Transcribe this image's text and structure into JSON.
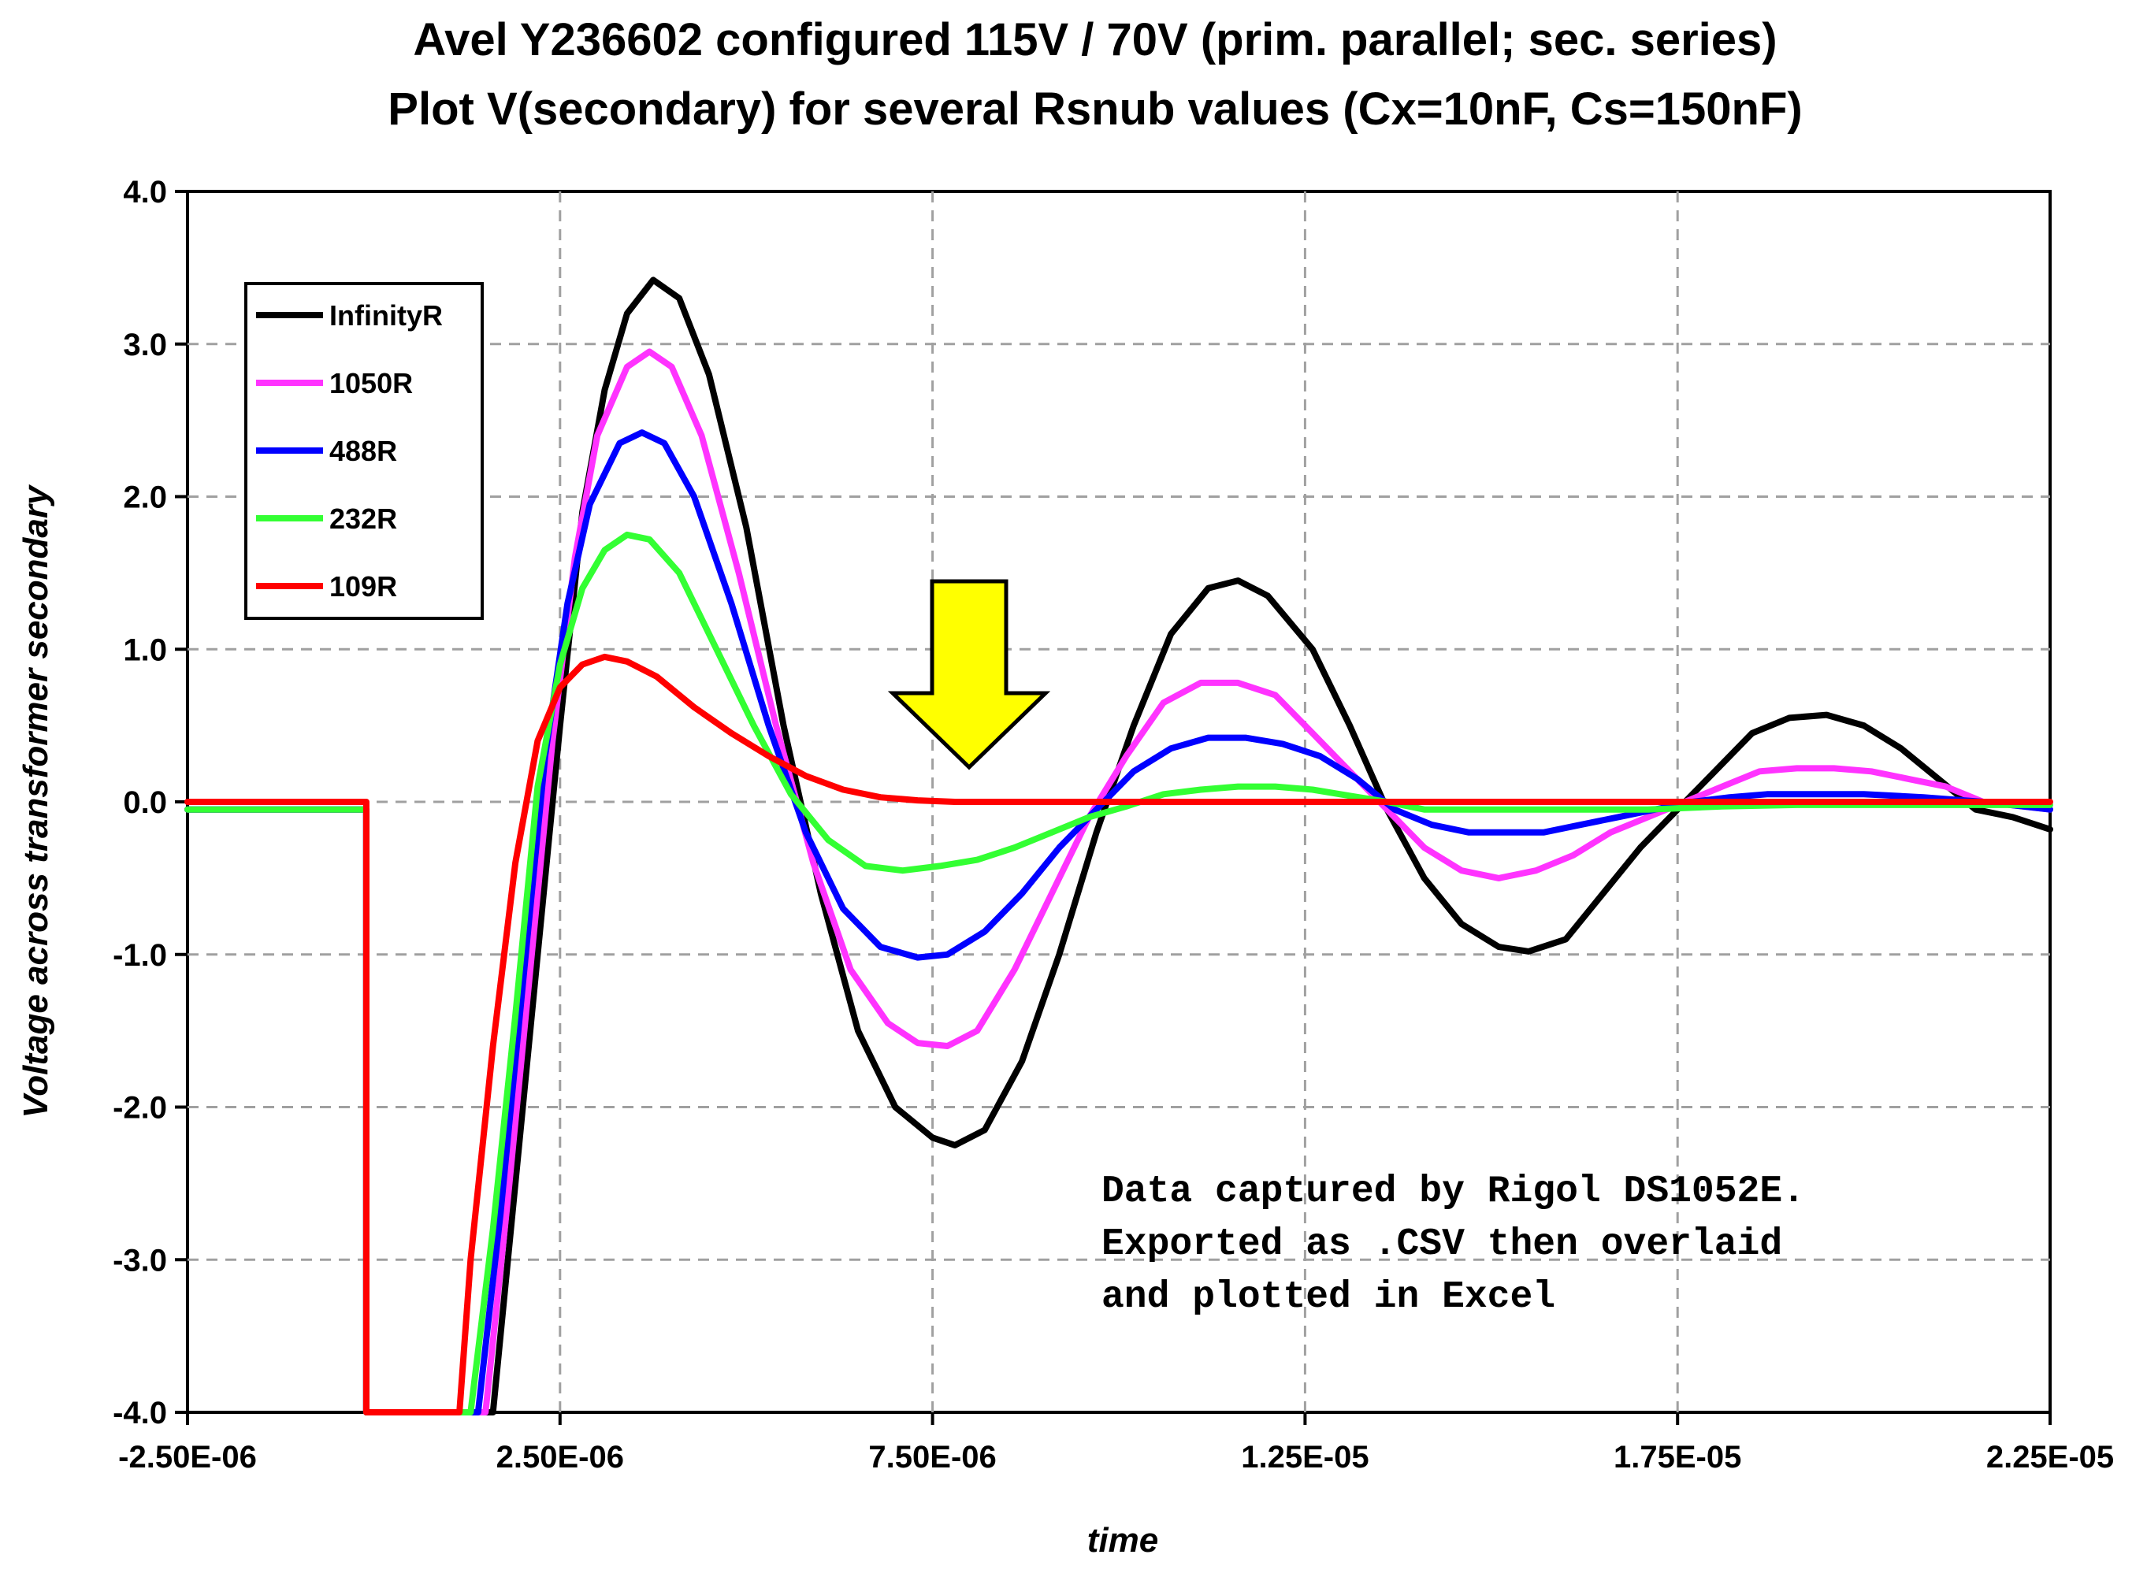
{
  "chart_data": {
    "type": "line",
    "title": "Avel Y236602 configured 115V / 70V (prim. parallel; sec. series)",
    "subtitle": "Plot V(secondary) for several Rsnub values (Cx=10nF, Cs=150nF)",
    "xlabel": "time",
    "ylabel": "Voltage across transformer secondary",
    "xlim": [
      -2.5e-06,
      2.25e-05
    ],
    "ylim": [
      -4.0,
      4.0
    ],
    "x_ticks": [
      -2.5e-06,
      2.5e-06,
      7.5e-06,
      1.25e-05,
      1.75e-05,
      2.25e-05
    ],
    "x_tick_labels": [
      "-2.50E-06",
      "2.50E-06",
      "7.50E-06",
      "1.25E-05",
      "1.75E-05",
      "2.25E-05"
    ],
    "y_ticks": [
      4.0,
      3.0,
      2.0,
      1.0,
      0.0,
      -1.0,
      -2.0,
      -3.0,
      -4.0
    ],
    "y_tick_labels": [
      "4.0",
      "3.0",
      "2.0",
      "1.0",
      "0.0",
      "-1.0",
      "-2.0",
      "-3.0",
      "-4.0"
    ],
    "grid": true,
    "legend_position": "top-left",
    "series": [
      {
        "name": "InfinityR",
        "color": "#000000",
        "points": [
          [
            -2.5e-06,
            -0.05
          ],
          [
            -1e-07,
            -0.05
          ],
          [
            -1e-07,
            -4.0
          ],
          [
            1.6e-06,
            -4.0
          ],
          [
            1.9e-06,
            -2.5
          ],
          [
            2.2e-06,
            -1.0
          ],
          [
            2.5e-06,
            0.5
          ],
          [
            2.8e-06,
            1.9
          ],
          [
            3.1e-06,
            2.7
          ],
          [
            3.4e-06,
            3.2
          ],
          [
            3.75e-06,
            3.42
          ],
          [
            4.1e-06,
            3.3
          ],
          [
            4.5e-06,
            2.8
          ],
          [
            5e-06,
            1.8
          ],
          [
            5.5e-06,
            0.5
          ],
          [
            6e-06,
            -0.6
          ],
          [
            6.5e-06,
            -1.5
          ],
          [
            7e-06,
            -2.0
          ],
          [
            7.5e-06,
            -2.2
          ],
          [
            7.8e-06,
            -2.25
          ],
          [
            8.2e-06,
            -2.15
          ],
          [
            8.7e-06,
            -1.7
          ],
          [
            9.2e-06,
            -1.0
          ],
          [
            9.7e-06,
            -0.2
          ],
          [
            1.02e-05,
            0.5
          ],
          [
            1.07e-05,
            1.1
          ],
          [
            1.12e-05,
            1.4
          ],
          [
            1.16e-05,
            1.45
          ],
          [
            1.2e-05,
            1.35
          ],
          [
            1.26e-05,
            1.0
          ],
          [
            1.31e-05,
            0.5
          ],
          [
            1.36e-05,
            -0.05
          ],
          [
            1.41e-05,
            -0.5
          ],
          [
            1.46e-05,
            -0.8
          ],
          [
            1.51e-05,
            -0.95
          ],
          [
            1.55e-05,
            -0.98
          ],
          [
            1.6e-05,
            -0.9
          ],
          [
            1.65e-05,
            -0.6
          ],
          [
            1.7e-05,
            -0.3
          ],
          [
            1.75e-05,
            -0.05
          ],
          [
            1.8e-05,
            0.2
          ],
          [
            1.85e-05,
            0.45
          ],
          [
            1.9e-05,
            0.55
          ],
          [
            1.95e-05,
            0.57
          ],
          [
            2e-05,
            0.5
          ],
          [
            2.05e-05,
            0.35
          ],
          [
            2.1e-05,
            0.15
          ],
          [
            2.15e-05,
            -0.05
          ],
          [
            2.2e-05,
            -0.1
          ],
          [
            2.25e-05,
            -0.18
          ]
        ]
      },
      {
        "name": "1050R",
        "color": "#ff33ff",
        "points": [
          [
            -2.5e-06,
            -0.05
          ],
          [
            -1e-07,
            -0.05
          ],
          [
            -1e-07,
            -4.0
          ],
          [
            1.5e-06,
            -4.0
          ],
          [
            1.8e-06,
            -2.6
          ],
          [
            2.1e-06,
            -1.1
          ],
          [
            2.4e-06,
            0.4
          ],
          [
            2.7e-06,
            1.6
          ],
          [
            3e-06,
            2.4
          ],
          [
            3.4e-06,
            2.85
          ],
          [
            3.7e-06,
            2.95
          ],
          [
            4e-06,
            2.85
          ],
          [
            4.4e-06,
            2.4
          ],
          [
            4.9e-06,
            1.5
          ],
          [
            5.4e-06,
            0.5
          ],
          [
            5.9e-06,
            -0.4
          ],
          [
            6.4e-06,
            -1.1
          ],
          [
            6.9e-06,
            -1.45
          ],
          [
            7.3e-06,
            -1.58
          ],
          [
            7.7e-06,
            -1.6
          ],
          [
            8.1e-06,
            -1.5
          ],
          [
            8.6e-06,
            -1.1
          ],
          [
            9.1e-06,
            -0.6
          ],
          [
            9.6e-06,
            -0.1
          ],
          [
            1.01e-05,
            0.3
          ],
          [
            1.06e-05,
            0.65
          ],
          [
            1.11e-05,
            0.78
          ],
          [
            1.16e-05,
            0.78
          ],
          [
            1.21e-05,
            0.7
          ],
          [
            1.26e-05,
            0.45
          ],
          [
            1.31e-05,
            0.2
          ],
          [
            1.36e-05,
            -0.05
          ],
          [
            1.41e-05,
            -0.3
          ],
          [
            1.46e-05,
            -0.45
          ],
          [
            1.51e-05,
            -0.5
          ],
          [
            1.56e-05,
            -0.45
          ],
          [
            1.61e-05,
            -0.35
          ],
          [
            1.66e-05,
            -0.2
          ],
          [
            1.71e-05,
            -0.1
          ],
          [
            1.76e-05,
            0.0
          ],
          [
            1.81e-05,
            0.1
          ],
          [
            1.86e-05,
            0.2
          ],
          [
            1.91e-05,
            0.22
          ],
          [
            1.96e-05,
            0.22
          ],
          [
            2.01e-05,
            0.2
          ],
          [
            2.06e-05,
            0.15
          ],
          [
            2.11e-05,
            0.1
          ],
          [
            2.16e-05,
            0.0
          ],
          [
            2.25e-05,
            -0.05
          ]
        ]
      },
      {
        "name": "488R",
        "color": "#0000ff",
        "points": [
          [
            -2.5e-06,
            -0.05
          ],
          [
            -1e-07,
            -0.05
          ],
          [
            -1e-07,
            -4.0
          ],
          [
            1.4e-06,
            -4.0
          ],
          [
            1.7e-06,
            -2.7
          ],
          [
            2e-06,
            -1.2
          ],
          [
            2.3e-06,
            0.3
          ],
          [
            2.6e-06,
            1.3
          ],
          [
            2.9e-06,
            1.95
          ],
          [
            3.3e-06,
            2.35
          ],
          [
            3.6e-06,
            2.42
          ],
          [
            3.9e-06,
            2.35
          ],
          [
            4.3e-06,
            2.0
          ],
          [
            4.8e-06,
            1.3
          ],
          [
            5.3e-06,
            0.5
          ],
          [
            5.8e-06,
            -0.2
          ],
          [
            6.3e-06,
            -0.7
          ],
          [
            6.8e-06,
            -0.95
          ],
          [
            7.3e-06,
            -1.02
          ],
          [
            7.7e-06,
            -1.0
          ],
          [
            8.2e-06,
            -0.85
          ],
          [
            8.7e-06,
            -0.6
          ],
          [
            9.2e-06,
            -0.3
          ],
          [
            9.7e-06,
            -0.05
          ],
          [
            1.02e-05,
            0.2
          ],
          [
            1.07e-05,
            0.35
          ],
          [
            1.12e-05,
            0.42
          ],
          [
            1.17e-05,
            0.42
          ],
          [
            1.22e-05,
            0.38
          ],
          [
            1.27e-05,
            0.3
          ],
          [
            1.32e-05,
            0.15
          ],
          [
            1.37e-05,
            -0.05
          ],
          [
            1.42e-05,
            -0.15
          ],
          [
            1.47e-05,
            -0.2
          ],
          [
            1.52e-05,
            -0.2
          ],
          [
            1.57e-05,
            -0.2
          ],
          [
            1.62e-05,
            -0.15
          ],
          [
            1.67e-05,
            -0.1
          ],
          [
            1.72e-05,
            -0.05
          ],
          [
            1.77e-05,
            0.0
          ],
          [
            1.82e-05,
            0.03
          ],
          [
            1.87e-05,
            0.05
          ],
          [
            1.92e-05,
            0.05
          ],
          [
            2e-05,
            0.05
          ],
          [
            2.08e-05,
            0.03
          ],
          [
            2.16e-05,
            0.0
          ],
          [
            2.25e-05,
            -0.05
          ]
        ]
      },
      {
        "name": "232R",
        "color": "#33ff33",
        "points": [
          [
            -2.5e-06,
            -0.05
          ],
          [
            -1e-07,
            -0.05
          ],
          [
            -1e-07,
            -4.0
          ],
          [
            1.3e-06,
            -4.0
          ],
          [
            1.6e-06,
            -2.8
          ],
          [
            1.9e-06,
            -1.4
          ],
          [
            2.2e-06,
            0.1
          ],
          [
            2.5e-06,
            0.9
          ],
          [
            2.8e-06,
            1.4
          ],
          [
            3.1e-06,
            1.65
          ],
          [
            3.4e-06,
            1.75
          ],
          [
            3.7e-06,
            1.72
          ],
          [
            4.1e-06,
            1.5
          ],
          [
            4.6e-06,
            1.0
          ],
          [
            5.1e-06,
            0.5
          ],
          [
            5.6e-06,
            0.05
          ],
          [
            6.1e-06,
            -0.25
          ],
          [
            6.6e-06,
            -0.42
          ],
          [
            7.1e-06,
            -0.45
          ],
          [
            7.6e-06,
            -0.42
          ],
          [
            8.1e-06,
            -0.38
          ],
          [
            8.6e-06,
            -0.3
          ],
          [
            9.1e-06,
            -0.2
          ],
          [
            9.6e-06,
            -0.1
          ],
          [
            1.01e-05,
            -0.03
          ],
          [
            1.06e-05,
            0.05
          ],
          [
            1.11e-05,
            0.08
          ],
          [
            1.16e-05,
            0.1
          ],
          [
            1.21e-05,
            0.1
          ],
          [
            1.26e-05,
            0.08
          ],
          [
            1.31e-05,
            0.04
          ],
          [
            1.36e-05,
            0.0
          ],
          [
            1.41e-05,
            -0.05
          ],
          [
            1.51e-05,
            -0.05
          ],
          [
            1.61e-05,
            -0.05
          ],
          [
            1.71e-05,
            -0.05
          ],
          [
            1.81e-05,
            -0.03
          ],
          [
            1.91e-05,
            -0.02
          ],
          [
            2.01e-05,
            -0.02
          ],
          [
            2.11e-05,
            -0.02
          ],
          [
            2.25e-05,
            -0.02
          ]
        ]
      },
      {
        "name": "109R",
        "color": "#ff0000",
        "points": [
          [
            -2.5e-06,
            0.0
          ],
          [
            -1e-07,
            0.0
          ],
          [
            -1e-07,
            -4.0
          ],
          [
            1.15e-06,
            -4.0
          ],
          [
            1.3e-06,
            -3.0
          ],
          [
            1.6e-06,
            -1.6
          ],
          [
            1.9e-06,
            -0.4
          ],
          [
            2.2e-06,
            0.4
          ],
          [
            2.5e-06,
            0.75
          ],
          [
            2.8e-06,
            0.9
          ],
          [
            3.1e-06,
            0.95
          ],
          [
            3.4e-06,
            0.92
          ],
          [
            3.8e-06,
            0.82
          ],
          [
            4.3e-06,
            0.62
          ],
          [
            4.8e-06,
            0.45
          ],
          [
            5.3e-06,
            0.3
          ],
          [
            5.8e-06,
            0.17
          ],
          [
            6.3e-06,
            0.08
          ],
          [
            6.8e-06,
            0.03
          ],
          [
            7.3e-06,
            0.01
          ],
          [
            7.8e-06,
            0.0
          ],
          [
            2.25e-05,
            0.0
          ]
        ]
      }
    ],
    "annotations": {
      "arrow": "yellow down arrow",
      "arrow_points_to_x": 7.5e-06,
      "note_lines": [
        "Data captured by Rigol DS1052E.",
        "Exported as .CSV then overlaid",
        "and plotted in Excel"
      ]
    }
  }
}
